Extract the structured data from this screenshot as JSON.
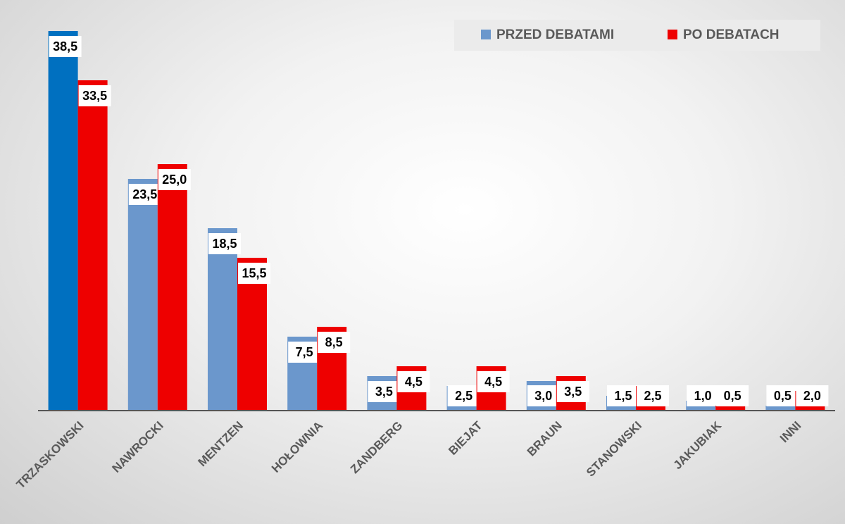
{
  "chart_data": {
    "type": "bar",
    "categories": [
      "TRZASKOWSKI",
      "NAWROCKI",
      "MENTZEN",
      "HOŁOWNIA",
      "ZANDBERG",
      "BIEJAT",
      "BRAUN",
      "STANOWSKI",
      "JAKUBIAK",
      "INNI"
    ],
    "series": [
      {
        "name": "PRZED DEBATAMI",
        "color": "#6b97cc",
        "colors": [
          "#0070c0",
          "#6b97cc",
          "#6b97cc",
          "#6b97cc",
          "#6b97cc",
          "#6b97cc",
          "#6b97cc",
          "#6b97cc",
          "#6b97cc",
          "#6b97cc"
        ],
        "values": [
          38.5,
          23.5,
          18.5,
          7.5,
          3.5,
          2.5,
          3.0,
          1.5,
          1.0,
          0.5
        ],
        "value_labels": [
          "38,5",
          "23,5",
          "18,5",
          "7,5",
          "3,5",
          "2,5",
          "3,0",
          "1,5",
          "1,0",
          "0,5"
        ]
      },
      {
        "name": "PO DEBATACH",
        "color": "#ee0000",
        "values": [
          33.5,
          25.0,
          15.5,
          8.5,
          4.5,
          4.5,
          3.5,
          2.5,
          0.5,
          2.0
        ],
        "value_labels": [
          "33,5",
          "25,0",
          "15,5",
          "8,5",
          "4,5",
          "4,5",
          "3,5",
          "2,5",
          "0,5",
          "2,0"
        ]
      }
    ],
    "legend": "top-right"
  }
}
